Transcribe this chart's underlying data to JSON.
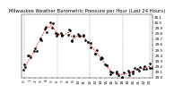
{
  "title": "Milwaukee Weather Barometric Pressure per Hour (Last 24 Hours)",
  "hours": [
    0,
    1,
    2,
    3,
    4,
    5,
    6,
    7,
    8,
    9,
    10,
    11,
    12,
    13,
    14,
    15,
    16,
    17,
    18,
    19,
    20,
    21,
    22,
    23
  ],
  "pressure": [
    29.18,
    29.35,
    29.52,
    29.72,
    29.88,
    29.95,
    29.8,
    29.75,
    29.82,
    29.7,
    29.78,
    29.72,
    29.6,
    29.48,
    29.35,
    29.22,
    29.1,
    29.08,
    29.05,
    29.08,
    29.12,
    29.15,
    29.18,
    29.2
  ],
  "scatter_offsets": [
    0.0,
    -0.04,
    0.05,
    -0.03,
    0.06,
    0.0,
    -0.05,
    0.04,
    -0.06,
    0.07,
    -0.04,
    0.05,
    0.0,
    -0.05,
    0.04,
    -0.03,
    0.06,
    0.0,
    -0.04,
    0.05,
    -0.06,
    0.03,
    0.0,
    -0.04
  ],
  "line_color": "#ff0000",
  "dot_color": "#000000",
  "background_color": "#ffffff",
  "grid_color": "#888888",
  "ylim": [
    29.0,
    30.15
  ],
  "yticks": [
    29.0,
    29.1,
    29.2,
    29.3,
    29.4,
    29.5,
    29.6,
    29.7,
    29.8,
    29.9,
    30.0,
    30.1
  ],
  "ytick_labels": [
    "29.0",
    "29.1",
    "29.2",
    "29.3",
    "29.4",
    "29.5",
    "29.6",
    "29.7",
    "29.8",
    "29.9",
    "30.0",
    "30.1"
  ],
  "title_fontsize": 3.8,
  "tick_fontsize": 3.0
}
